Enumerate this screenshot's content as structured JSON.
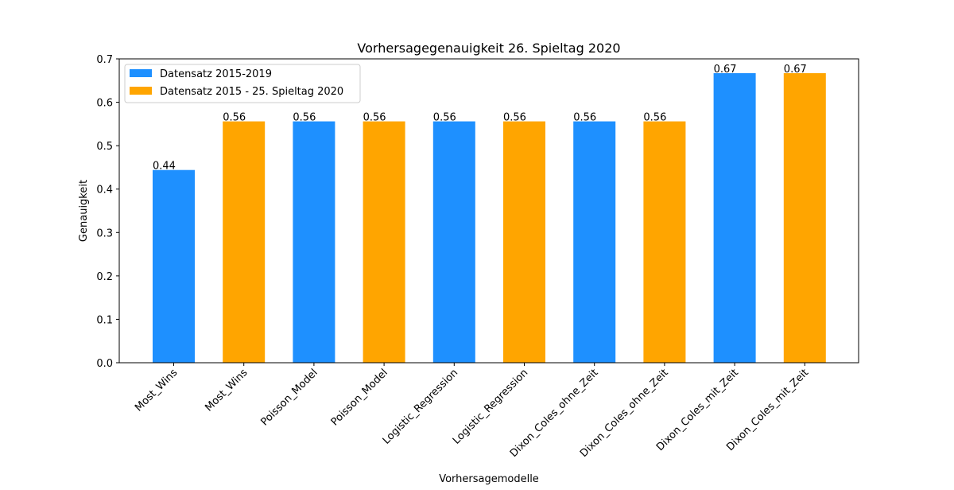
{
  "chart_data": {
    "type": "bar",
    "title": "Vorhersagegenauigkeit 26. Spieltag 2020",
    "xlabel": "Vorhersagemodelle",
    "ylabel": "Genauigkeit",
    "ylim": [
      0,
      0.7
    ],
    "yticks": [
      "0.0",
      "0.1",
      "0.2",
      "0.3",
      "0.4",
      "0.5",
      "0.6",
      "0.7"
    ],
    "grid": false,
    "legend_position": "top-left",
    "categories": [
      "Most_Wins",
      "Most_Wins",
      "Poisson_Model",
      "Poisson_Model",
      "Logistic_Regression",
      "Logistic_Regression",
      "Dixon_Coles_ohne_Zeit",
      "Dixon_Coles_ohne_Zeit",
      "Dixon_Coles_mit_Zeit",
      "Dixon_Coles_mit_Zeit"
    ],
    "values": [
      0.444,
      0.556,
      0.556,
      0.556,
      0.556,
      0.556,
      0.556,
      0.556,
      0.667,
      0.667
    ],
    "labels": [
      "0.44",
      "0.56",
      "0.56",
      "0.56",
      "0.56",
      "0.56",
      "0.56",
      "0.56",
      "0.67",
      "0.67"
    ],
    "bar_series": [
      0,
      1,
      0,
      1,
      0,
      1,
      0,
      1,
      0,
      1
    ],
    "series": [
      {
        "name": "Datensatz 2015-2019",
        "color": "#1e90ff"
      },
      {
        "name": "Datensatz 2015 - 25. Spieltag 2020",
        "color": "#ffa500"
      }
    ]
  }
}
